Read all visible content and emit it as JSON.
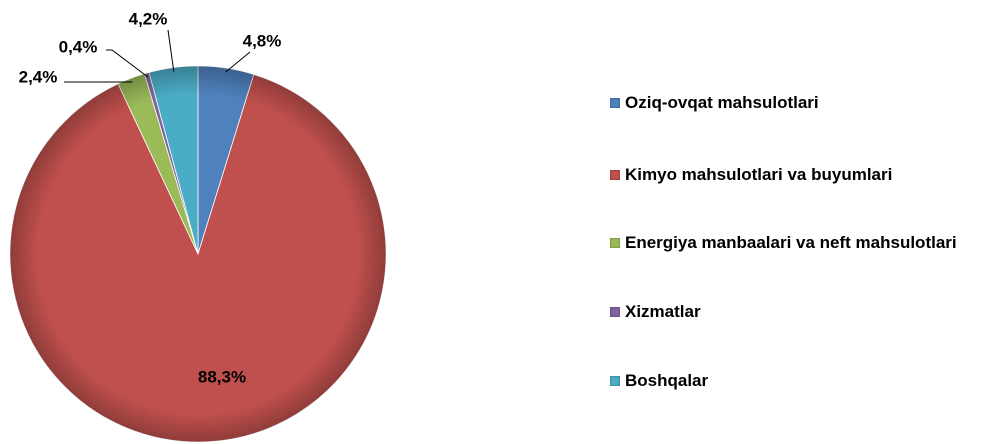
{
  "chart_data": {
    "type": "pie",
    "categories": [
      "Oziq-ovqat mahsulotlari",
      "Kimyo mahsulotlari va buyumlari",
      "Energiya manbaalari va neft mahsulotlari",
      "Xizmatlar",
      "Boshqalar"
    ],
    "values": [
      4.8,
      88.3,
      2.4,
      0.4,
      4.2
    ],
    "value_labels": [
      "4,8%",
      "88,3%",
      "2,4%",
      "0,4%",
      "4,2%"
    ],
    "colors": [
      "#4f81bd",
      "#c0504d",
      "#9bbb59",
      "#8064a2",
      "#4bacc6"
    ],
    "legend": "right"
  }
}
